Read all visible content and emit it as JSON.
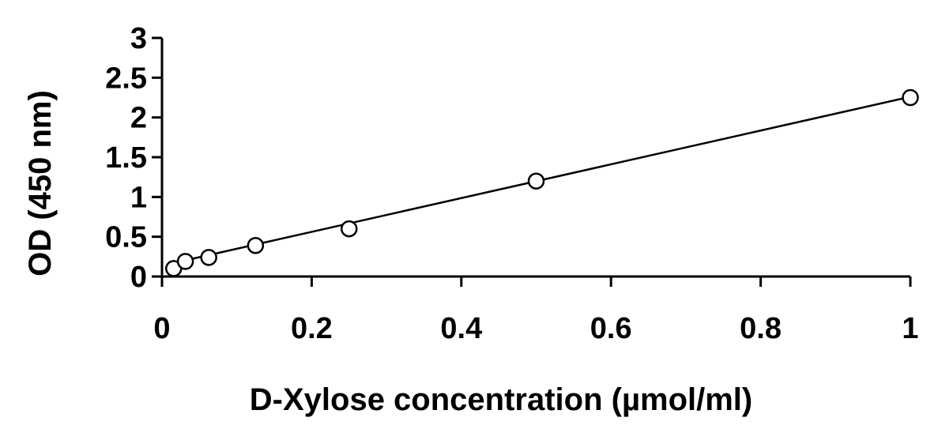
{
  "chart_data": {
    "type": "scatter",
    "title": "",
    "xlabel": "D-Xylose concentration (µmol/ml)",
    "ylabel": "OD (450 nm)",
    "xlim": [
      0,
      1
    ],
    "ylim": [
      0,
      3
    ],
    "x_ticks": [
      0,
      0.2,
      0.4,
      0.6,
      0.8,
      1
    ],
    "x_tick_labels": [
      "0",
      "0.2",
      "0.4",
      "0.6",
      "0.8",
      "1"
    ],
    "y_ticks": [
      0,
      0.5,
      1,
      1.5,
      2,
      2.5,
      3
    ],
    "y_tick_labels": [
      "0",
      "0.5",
      "1",
      "1.5",
      "2",
      "2.5",
      "3"
    ],
    "grid": false,
    "legend": "none",
    "series": [
      {
        "marker": "open-circle",
        "x": [
          0.0156,
          0.03125,
          0.0625,
          0.125,
          0.25,
          0.5,
          1
        ],
        "y": [
          0.1,
          0.19,
          0.24,
          0.39,
          0.6,
          1.2,
          2.25
        ]
      }
    ],
    "trendline": {
      "type": "linear",
      "x": [
        0.0156,
        1
      ],
      "y": [
        0.17,
        2.26
      ]
    },
    "colors": {
      "axis": "#000000",
      "marker": "#000000",
      "trendline": "#000000"
    }
  }
}
